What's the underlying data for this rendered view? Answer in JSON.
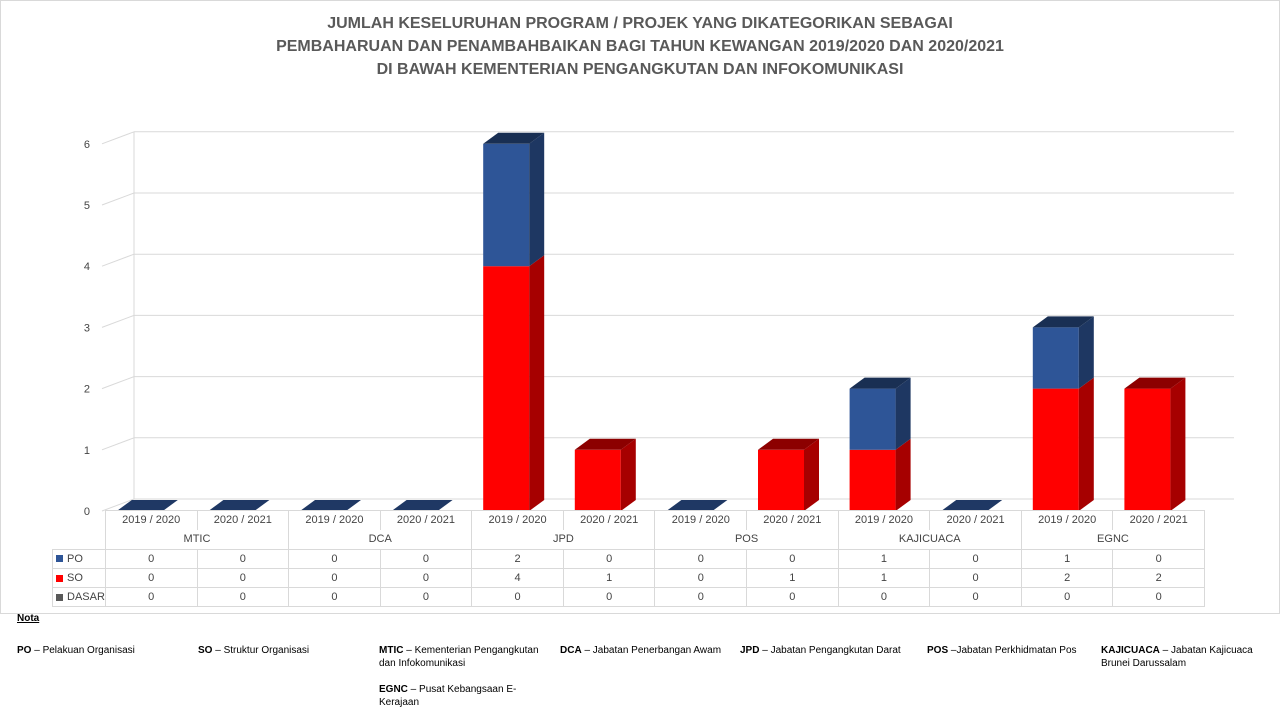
{
  "title_lines": [
    "JUMLAH KESELURUHAN PROGRAM / PROJEK YANG DIKATEGORIKAN SEBAGAI",
    "PEMBAHARUAN DAN PENAMBAHBAIKAN BAGI TAHUN KEWANGAN 2019/2020 DAN 2020/2021",
    "DI BAWAH KEMENTERIAN PENGANGKUTAN DAN INFOKOMUNIKASI"
  ],
  "chart_data": {
    "type": "bar",
    "stacked": true,
    "three_d": true,
    "groups": [
      "MTIC",
      "DCA",
      "JPD",
      "POS",
      "KAJICUACA",
      "EGNC"
    ],
    "periods": [
      "2019 / 2020",
      "2020 / 2021"
    ],
    "categories": [
      "2019 / 2020",
      "2020 / 2021",
      "2019 / 2020",
      "2020 / 2021",
      "2019 / 2020",
      "2020 / 2021",
      "2019 / 2020",
      "2020 / 2021",
      "2019 / 2020",
      "2020 / 2021",
      "2019 / 2020",
      "2020 / 2021"
    ],
    "series": [
      {
        "name": "PO",
        "color": "#2e5597",
        "values": [
          0,
          0,
          0,
          0,
          2,
          0,
          0,
          0,
          1,
          0,
          1,
          0
        ]
      },
      {
        "name": "SO",
        "color": "#ff0000",
        "values": [
          0,
          0,
          0,
          0,
          4,
          1,
          0,
          1,
          1,
          0,
          2,
          2
        ]
      },
      {
        "name": "DASAR",
        "color": "#595959",
        "values": [
          0,
          0,
          0,
          0,
          0,
          0,
          0,
          0,
          0,
          0,
          0,
          0
        ]
      }
    ],
    "yticks": [
      "0",
      "1",
      "2",
      "3",
      "4",
      "5",
      "6"
    ],
    "ylim": [
      0,
      6
    ],
    "grid": true,
    "data_table": true
  },
  "notes": {
    "heading": "Nota",
    "items": [
      {
        "abbr": "PO",
        "text": " – Pelakuan Organisasi"
      },
      {
        "abbr": "SO",
        "text": " – Struktur Organisasi"
      },
      {
        "abbr": "MTIC",
        "text": " – Kementerian Pengangkutan dan Infokomunikasi"
      },
      {
        "abbr": "DCA",
        "text": " – Jabatan Penerbangan Awam"
      },
      {
        "abbr": "JPD",
        "text": " – Jabatan Pengangkutan Darat"
      },
      {
        "abbr": "POS",
        "text": " –Jabatan Perkhidmatan Pos"
      },
      {
        "abbr": "KAJICUACA",
        "text": " – Jabatan Kajicuaca Brunei Darussalam"
      },
      {
        "abbr": "EGNC",
        "text": " – Pusat Kebangsaan E-Kerajaan"
      }
    ]
  }
}
